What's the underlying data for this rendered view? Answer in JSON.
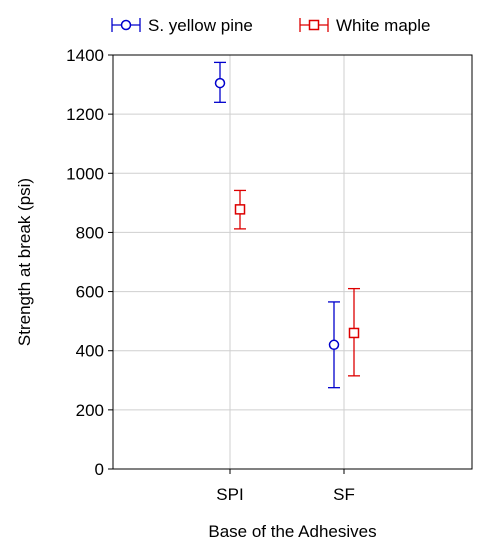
{
  "chart_data": {
    "type": "scatter",
    "title": "",
    "xlabel": "Base of the Adhesives",
    "ylabel": "Strength at break (psi)",
    "categories": [
      "SPI",
      "SF"
    ],
    "ylim": [
      0,
      1400
    ],
    "yticks": [
      0,
      200,
      400,
      600,
      800,
      1000,
      1200,
      1400
    ],
    "grid": true,
    "legend_position": "top",
    "series": [
      {
        "name": "S. yellow pine",
        "color": "#0000cc",
        "marker": "circle",
        "values": [
          1305,
          420
        ],
        "error_low": [
          1240,
          275
        ],
        "error_high": [
          1375,
          565
        ]
      },
      {
        "name": "White maple",
        "color": "#dd0000",
        "marker": "square",
        "values": [
          878,
          460
        ],
        "error_low": [
          812,
          315
        ],
        "error_high": [
          942,
          610
        ]
      }
    ]
  }
}
